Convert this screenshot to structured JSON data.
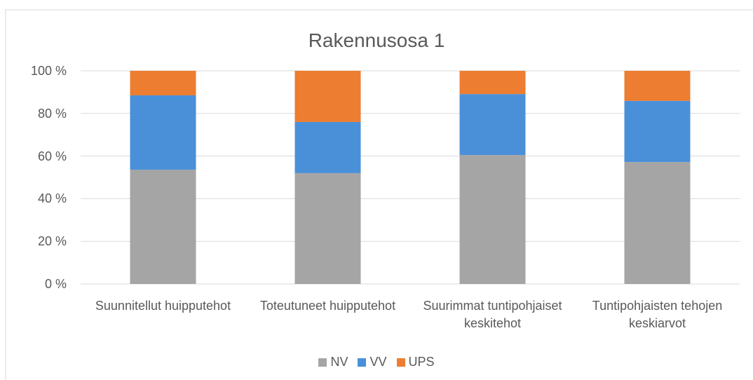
{
  "chart_data": {
    "type": "stacked_bar",
    "title": "Rakennusosa 1",
    "categories": [
      "Suunnitellut huipputehot",
      "Toteutuneet huipputehot",
      "Suurimmat tuntipohjaiset keskitehot",
      "Tuntipohjaisten tehojen keskiarvot"
    ],
    "series": [
      {
        "name": "NV",
        "color": "#a5a5a5",
        "values": [
          53.6,
          52.0,
          60.5,
          57.2
        ]
      },
      {
        "name": "VV",
        "color": "#4a90d9",
        "values": [
          34.9,
          24.0,
          28.6,
          28.7
        ]
      },
      {
        "name": "UPS",
        "color": "#ed7d31",
        "values": [
          11.5,
          24.0,
          10.9,
          14.1
        ]
      }
    ],
    "ylim": [
      0,
      100
    ],
    "yticks": [
      {
        "value": 0,
        "label": "0 %"
      },
      {
        "value": 20,
        "label": "20 %"
      },
      {
        "value": 40,
        "label": "40 %"
      },
      {
        "value": 60,
        "label": "60 %"
      },
      {
        "value": 80,
        "label": "80 %"
      },
      {
        "value": 100,
        "label": "100 %"
      }
    ],
    "grid": true,
    "legend": "bottom"
  }
}
